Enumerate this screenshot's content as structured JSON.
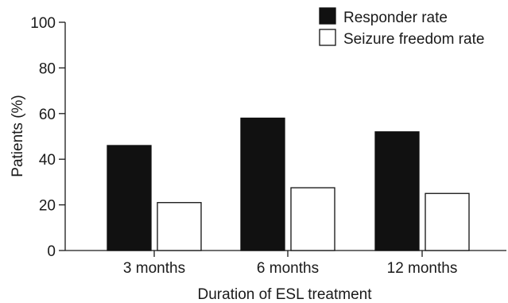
{
  "chart_data": {
    "type": "bar",
    "title": "",
    "xlabel": "Duration of ESL treatment",
    "ylabel": "Patients (%)",
    "categories": [
      "3 months",
      "6 months",
      "12 months"
    ],
    "series": [
      {
        "name": "Responder rate",
        "values": [
          46,
          58,
          52
        ],
        "color": "#111111"
      },
      {
        "name": "Seizure freedom rate",
        "values": [
          21,
          27.5,
          25
        ],
        "color": "#ffffff"
      }
    ],
    "ylim": [
      0,
      100
    ],
    "yticks": [
      0,
      20,
      40,
      60,
      80,
      100
    ],
    "grid": false,
    "legend_position": "top-right"
  }
}
